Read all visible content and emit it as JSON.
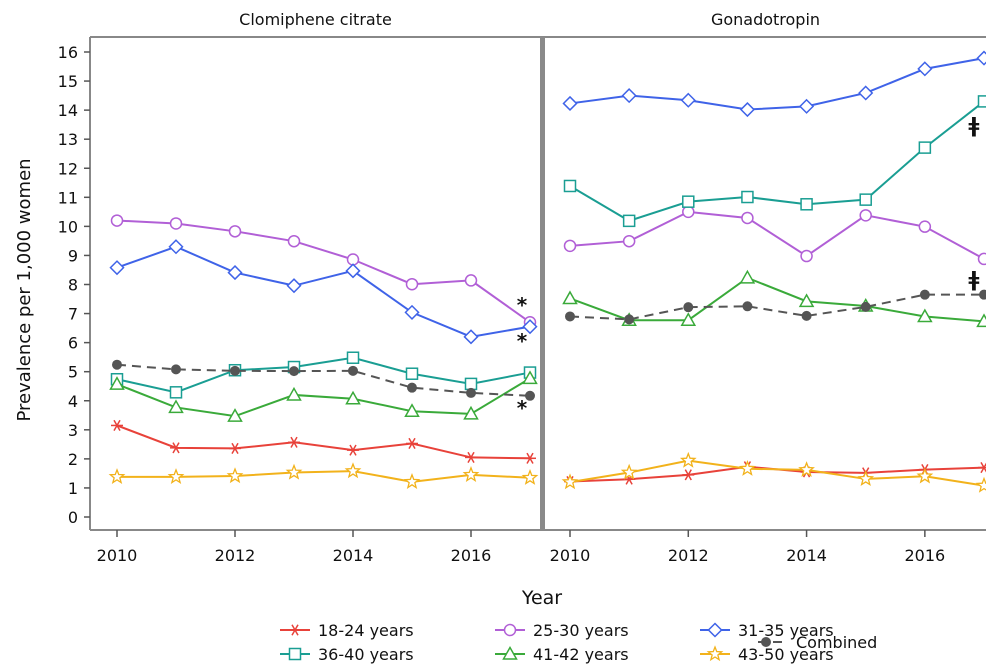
{
  "chart_data": {
    "type": "line",
    "xlabel": "Year",
    "ylabel": "Prevalence per 1,000 women",
    "ylim": [
      0,
      16
    ],
    "yticks": [
      "0",
      "1",
      "2",
      "3",
      "4",
      "5",
      "6",
      "7",
      "8",
      "9",
      "10",
      "11",
      "12",
      "13",
      "14",
      "15",
      "16"
    ],
    "xticks": [
      "2010",
      "2012",
      "2014",
      "2016"
    ],
    "x": [
      2010,
      2011,
      2012,
      2013,
      2014,
      2015,
      2016,
      2017
    ],
    "panels": [
      {
        "title": "Clomiphene citrate",
        "series": [
          {
            "name": "18-24 years",
            "values": [
              3.15,
              2.38,
              2.36,
              2.57,
              2.3,
              2.53,
              2.05,
              2.02
            ]
          },
          {
            "name": "25-30 years",
            "values": [
              10.2,
              10.1,
              9.83,
              9.49,
              8.86,
              8.01,
              8.14,
              6.7
            ]
          },
          {
            "name": "31-35 years",
            "values": [
              8.58,
              9.3,
              8.41,
              7.96,
              8.47,
              7.04,
              6.2,
              6.55
            ]
          },
          {
            "name": "36-40 years",
            "values": [
              4.74,
              4.29,
              5.05,
              5.16,
              5.48,
              4.93,
              4.58,
              4.97
            ]
          },
          {
            "name": "41-42 years",
            "values": [
              4.57,
              3.77,
              3.47,
              4.2,
              4.07,
              3.64,
              3.55,
              4.77
            ]
          },
          {
            "name": "43-50 years",
            "values": [
              1.38,
              1.38,
              1.41,
              1.53,
              1.58,
              1.21,
              1.45,
              1.35
            ]
          },
          {
            "name": "Combined",
            "values": [
              5.24,
              5.08,
              5.03,
              5.02,
              5.03,
              4.45,
              4.27,
              4.17
            ]
          }
        ],
        "annotations": [
          "*",
          "*",
          "*"
        ]
      },
      {
        "title": "Gonadotropin",
        "series": [
          {
            "name": "18-24 years",
            "values": [
              1.22,
              1.3,
              1.45,
              1.73,
              1.55,
              1.52,
              1.63,
              1.7
            ]
          },
          {
            "name": "25-30 years",
            "values": [
              9.33,
              9.49,
              10.5,
              10.29,
              8.98,
              10.38,
              9.99,
              8.88
            ]
          },
          {
            "name": "31-35 years",
            "values": [
              14.23,
              14.5,
              14.34,
              14.02,
              14.13,
              14.59,
              15.42,
              15.79
            ]
          },
          {
            "name": "36-40 years",
            "values": [
              11.39,
              10.19,
              10.85,
              11.01,
              10.76,
              10.92,
              12.71,
              14.3
            ]
          },
          {
            "name": "41-42 years",
            "values": [
              7.52,
              6.77,
              6.77,
              8.23,
              7.42,
              7.26,
              6.9,
              6.73
            ]
          },
          {
            "name": "43-50 years",
            "values": [
              1.2,
              1.53,
              1.94,
              1.66,
              1.62,
              1.31,
              1.4,
              1.08
            ]
          },
          {
            "name": "Combined",
            "values": [
              6.9,
              6.8,
              7.22,
              7.25,
              6.92,
              7.23,
              7.65,
              7.65
            ]
          }
        ],
        "annotations": [
          "ǂ",
          "ǂ"
        ]
      }
    ],
    "series_styles": [
      {
        "name": "18-24 years",
        "color": "#e8423a",
        "marker": "asterisk",
        "dash": "solid"
      },
      {
        "name": "25-30 years",
        "color": "#b15fd6",
        "marker": "circle",
        "dash": "solid"
      },
      {
        "name": "31-35 years",
        "color": "#3f63e8",
        "marker": "diamond",
        "dash": "solid"
      },
      {
        "name": "36-40 years",
        "color": "#1a9e93",
        "marker": "square",
        "dash": "solid"
      },
      {
        "name": "41-42 years",
        "color": "#3aaa3a",
        "marker": "triangle",
        "dash": "solid"
      },
      {
        "name": "43-50 years",
        "color": "#f2b21b",
        "marker": "star",
        "dash": "solid"
      },
      {
        "name": "Combined",
        "color": "#555555",
        "marker": "filled-circle",
        "dash": "dashed"
      }
    ],
    "legend": {
      "placement": "bottom",
      "rows": [
        [
          "18-24 years",
          "25-30 years",
          "31-35 years"
        ],
        [
          "36-40 years",
          "41-42 years",
          "43-50 years"
        ]
      ],
      "side": "Combined"
    },
    "grid": false
  }
}
